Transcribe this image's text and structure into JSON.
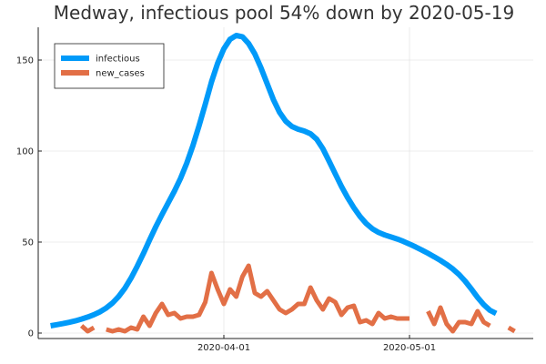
{
  "chart_data": {
    "type": "line",
    "title": "Medway, infectious pool 54% down by 2020-05-19",
    "xlabel": "",
    "ylabel": "",
    "grid": true,
    "legend_position": "top-left",
    "x_start": "2020-03-04",
    "x_ticks": [
      {
        "date": "2020-04-01",
        "label": "2020-04-01"
      },
      {
        "date": "2020-05-01",
        "label": "2020-05-01"
      }
    ],
    "xlim": [
      "2020-03-02",
      "2020-05-21"
    ],
    "ylim": [
      -3,
      168
    ],
    "y_ticks": [
      0,
      50,
      100,
      150
    ],
    "series": [
      {
        "name": "infectious",
        "color": "#009AF9",
        "values": [
          4.0,
          4.6,
          5.2,
          5.9,
          6.7,
          7.7,
          8.8,
          10.1,
          11.7,
          13.8,
          16.5,
          20.1,
          24.6,
          30.2,
          36.7,
          43.7,
          51.2,
          58.4,
          65.1,
          71.5,
          77.9,
          85.0,
          93.3,
          103.0,
          114.0,
          125.8,
          138.0,
          148.3,
          156.2,
          161.4,
          163.5,
          162.8,
          159.1,
          153.4,
          145.7,
          137.0,
          128.3,
          121.3,
          116.4,
          113.5,
          112.0,
          111.0,
          109.5,
          106.5,
          101.3,
          94.5,
          87.5,
          80.6,
          74.4,
          68.9,
          64.1,
          60.2,
          57.3,
          55.3,
          53.9,
          52.8,
          51.7,
          50.4,
          48.9,
          47.3,
          45.6,
          43.8,
          41.9,
          39.9,
          37.7,
          35.2,
          32.2,
          28.5,
          24.2,
          19.6,
          15.6,
          12.5,
          10.8
        ]
      },
      {
        "name": "new_cases",
        "color": "#E26F46",
        "values": [
          null,
          null,
          null,
          null,
          null,
          4,
          1,
          3,
          null,
          2,
          1,
          2,
          1,
          3,
          2,
          9,
          4,
          11,
          16,
          10,
          11,
          8,
          9,
          9,
          10,
          17,
          33,
          24,
          16,
          24,
          20,
          31,
          37,
          22,
          20,
          23,
          18,
          13,
          11,
          13,
          16,
          16,
          25,
          18,
          13,
          19,
          17,
          10,
          14,
          15,
          6,
          7,
          5,
          11,
          8,
          9,
          8,
          8,
          8,
          null,
          null,
          12,
          5,
          14,
          5,
          1,
          6,
          6,
          5,
          12,
          6,
          4,
          null,
          null,
          3,
          1
        ]
      }
    ]
  }
}
